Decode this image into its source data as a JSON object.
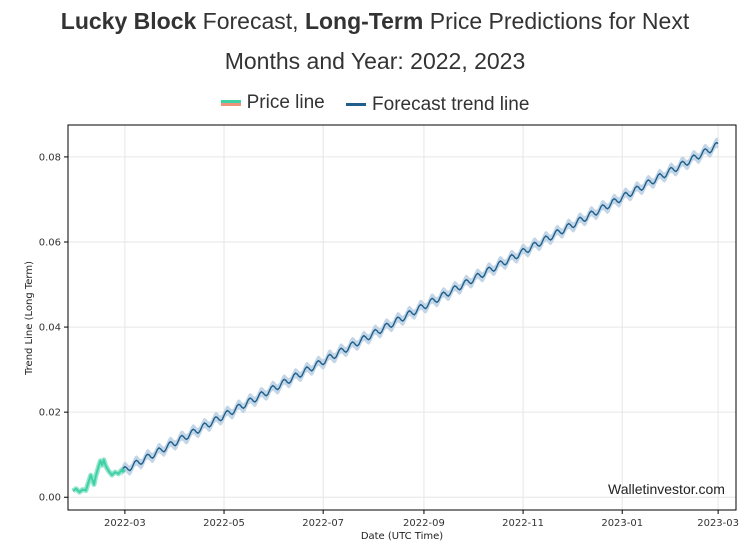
{
  "header": {
    "title_bold1": "Lucky Block",
    "title_text1": " Forecast, ",
    "title_bold2": "Long-Term",
    "title_text2": " Price Predictions for Next",
    "title_line2": "Months and Year: 2022, 2023"
  },
  "legend": {
    "price_label": "Price line",
    "forecast_label": "Forecast trend line"
  },
  "watermark": "Walletinvestor.com",
  "colors": {
    "price_line": "#3fd1a5",
    "price_line_alt": "#f0917a",
    "forecast_line": "#1f5f8b",
    "forecast_band": "#b9cfe3",
    "grid": "#e6e6e6"
  },
  "chart_data": {
    "type": "line",
    "xlabel": "Date (UTC Time)",
    "ylabel": "Trend Line (Long Term)",
    "xlim": [
      "2022-01-25",
      "2023-03-12"
    ],
    "ylim": [
      -0.003,
      0.0875
    ],
    "x_ticks": [
      "2022-03",
      "2022-05",
      "2022-07",
      "2022-09",
      "2022-11",
      "2023-01",
      "2023-03"
    ],
    "y_ticks": [
      "0.00",
      "0.02",
      "0.04",
      "0.06",
      "0.08"
    ],
    "y_tick_values": [
      0.0,
      0.02,
      0.04,
      0.06,
      0.08
    ],
    "grid": true,
    "series": [
      {
        "name": "Price line",
        "x": [
          "2022-01-28",
          "2022-01-30",
          "2022-02-01",
          "2022-02-03",
          "2022-02-05",
          "2022-02-07",
          "2022-02-08",
          "2022-02-10",
          "2022-02-11",
          "2022-02-13",
          "2022-02-14",
          "2022-02-15",
          "2022-02-16",
          "2022-02-17",
          "2022-02-18",
          "2022-02-19",
          "2022-02-21",
          "2022-02-23",
          "2022-02-25",
          "2022-02-27",
          "2022-03-01"
        ],
        "y": [
          0.0015,
          0.002,
          0.0012,
          0.0018,
          0.0016,
          0.004,
          0.0052,
          0.003,
          0.0048,
          0.0075,
          0.0086,
          0.0075,
          0.0088,
          0.0076,
          0.0068,
          0.0062,
          0.0052,
          0.0059,
          0.0055,
          0.0064,
          0.006
        ]
      },
      {
        "name": "Forecast trend line",
        "x": [
          "2022-02-27",
          "2023-03-01"
        ],
        "y": [
          0.006,
          0.0828
        ],
        "band": 0.0012,
        "oscillation_amplitude": 0.0008,
        "oscillation_period_days": 7
      }
    ]
  }
}
